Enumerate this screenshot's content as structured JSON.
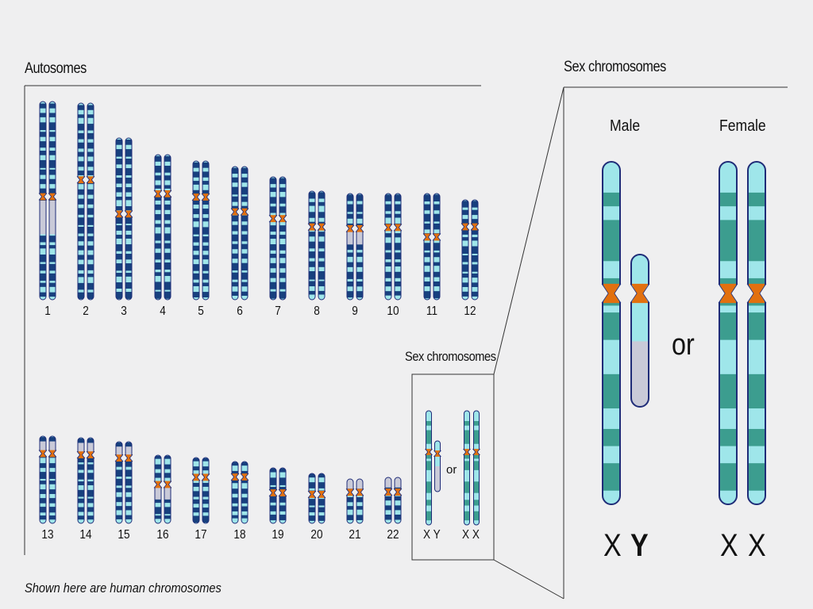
{
  "autosomes_label": "Autosomes",
  "sex_chromosomes_label": "Sex chromosomes",
  "sex_chromosomes_inset_label": "Sex chromosomes",
  "male_label": "Male",
  "female_label": "Female",
  "or_label": "or",
  "male_pair": [
    "X",
    "Y"
  ],
  "female_pair": [
    "X",
    "X"
  ],
  "small_pair_labels": {
    "male": "X Y",
    "female": "X X"
  },
  "caption": "Shown here are human chromosomes",
  "autosome_numbers_row1": [
    "1",
    "2",
    "3",
    "4",
    "5",
    "6",
    "7",
    "8",
    "9",
    "10",
    "11",
    "12"
  ],
  "autosome_numbers_row2": [
    "13",
    "14",
    "15",
    "16",
    "17",
    "18",
    "19",
    "20",
    "21",
    "22"
  ],
  "colors": {
    "background": "#efeff0",
    "chromosome_light": "#9fe6ea",
    "chromosome_dark": "#17407e",
    "sex_chromosome_dark": "#3c9d8f",
    "centromere": "#e2700f",
    "heterochromatin": "#c9cad8",
    "outline": "#1f2c78"
  }
}
